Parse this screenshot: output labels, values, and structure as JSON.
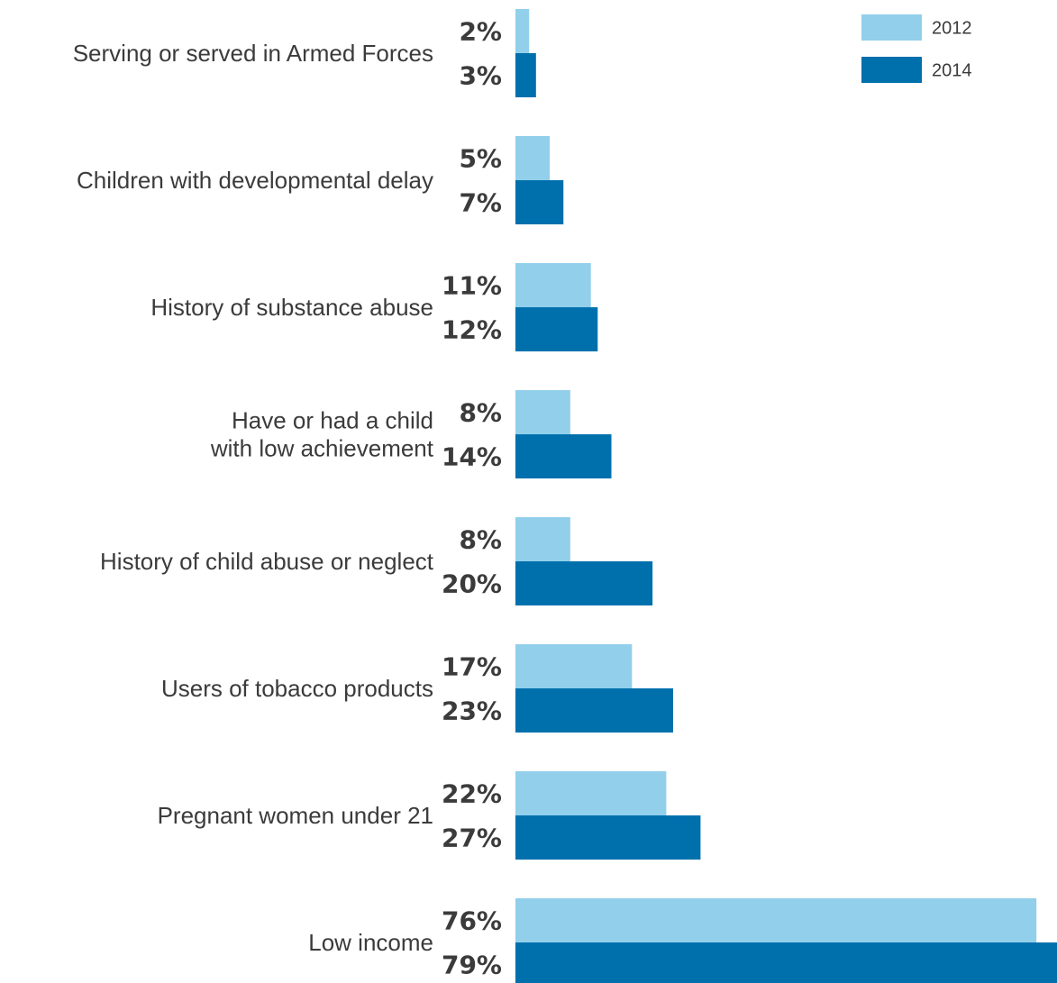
{
  "chart_data": {
    "type": "bar",
    "orientation": "horizontal",
    "categories": [
      [
        "Serving or served in Armed Forces"
      ],
      [
        "Children with developmental delay"
      ],
      [
        "History of substance abuse"
      ],
      [
        "Have or had a child",
        "with low achievement"
      ],
      [
        "History of child abuse or neglect"
      ],
      [
        "Users of tobacco products"
      ],
      [
        "Pregnant women under 21"
      ],
      [
        "Low income"
      ]
    ],
    "series": [
      {
        "name": "2012",
        "color": "#92cfeb",
        "values": [
          2,
          5,
          11,
          8,
          8,
          17,
          22,
          76
        ]
      },
      {
        "name": "2014",
        "color": "#0070ad",
        "values": [
          3,
          7,
          12,
          14,
          20,
          23,
          27,
          79
        ]
      }
    ],
    "value_suffix": "%",
    "xlim": [
      0,
      79
    ],
    "grid": false,
    "legend_position": "top-right"
  }
}
